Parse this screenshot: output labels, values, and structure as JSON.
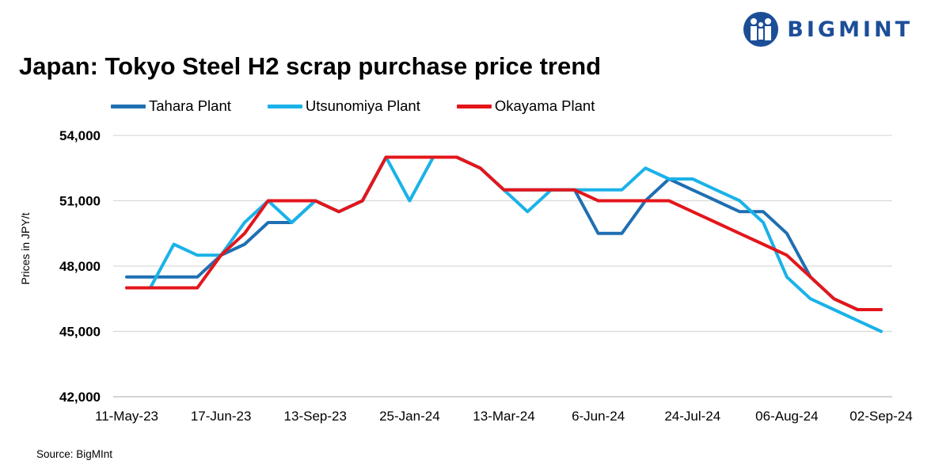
{
  "brand": {
    "name": "BIGMINT",
    "color": "#1c4e98"
  },
  "source": "Source: BigMInt",
  "chart_data": {
    "type": "line",
    "title": "Japan: Tokyo Steel H2 scrap purchase price trend",
    "ylabel": "Prices in JPY/t",
    "xlabel": "",
    "ylim": [
      42000,
      54000
    ],
    "yticks": [
      42000,
      45000,
      48000,
      51000,
      54000
    ],
    "ytick_labels": [
      "42,000",
      "45,000",
      "48,000",
      "51,000",
      "54,000"
    ],
    "grid": "horizontal",
    "legend_position": "top",
    "x_tick_labels": [
      {
        "index": 0,
        "label": "11-May-23"
      },
      {
        "index": 4,
        "label": "17-Jun-23"
      },
      {
        "index": 8,
        "label": "13-Sep-23"
      },
      {
        "index": 12,
        "label": "25-Jan-24"
      },
      {
        "index": 16,
        "label": "13-Mar-24"
      },
      {
        "index": 20,
        "label": "6-Jun-24"
      },
      {
        "index": 24,
        "label": "24-Jul-24"
      },
      {
        "index": 28,
        "label": "06-Aug-24"
      },
      {
        "index": 32,
        "label": "02-Sep-24"
      }
    ],
    "point_count": 33,
    "series": [
      {
        "name": "Tahara Plant",
        "color": "#1f6fb2",
        "values": [
          47500,
          47500,
          47500,
          47500,
          48500,
          49000,
          50000,
          50000,
          51000,
          50500,
          51000,
          53000,
          53000,
          53000,
          53000,
          52500,
          51500,
          51500,
          51500,
          51500,
          49500,
          49500,
          51000,
          52000,
          51500,
          51000,
          50500,
          50500,
          49500,
          47500,
          46500,
          46000,
          46000
        ]
      },
      {
        "name": "Utsunomiya Plant",
        "color": "#1ab2e8",
        "values": [
          47000,
          47000,
          49000,
          48500,
          48500,
          50000,
          51000,
          50000,
          51000,
          50500,
          51000,
          53000,
          51000,
          53000,
          53000,
          52500,
          51500,
          50500,
          51500,
          51500,
          51500,
          51500,
          52500,
          52000,
          52000,
          51500,
          51000,
          50000,
          47500,
          46500,
          46000,
          45500,
          45000
        ]
      },
      {
        "name": "Okayama Plant",
        "color": "#e3161b",
        "values": [
          47000,
          47000,
          47000,
          47000,
          48500,
          49500,
          51000,
          51000,
          51000,
          50500,
          51000,
          53000,
          53000,
          53000,
          53000,
          52500,
          51500,
          51500,
          51500,
          51500,
          51000,
          51000,
          51000,
          51000,
          50500,
          50000,
          49500,
          49000,
          48500,
          47500,
          46500,
          46000,
          46000
        ]
      }
    ]
  }
}
